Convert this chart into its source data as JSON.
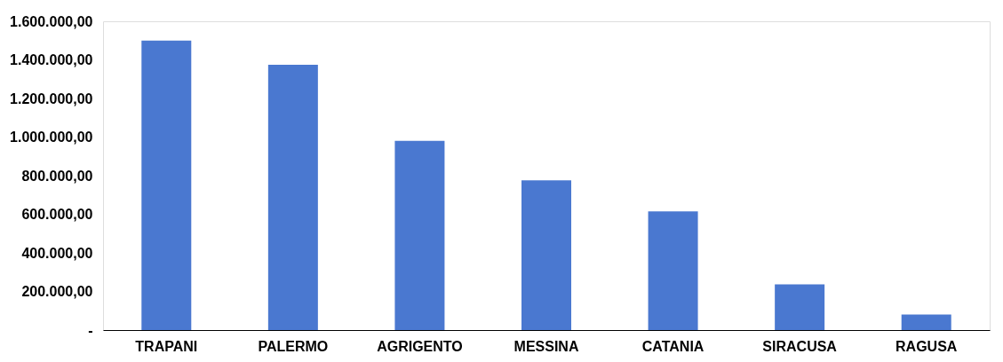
{
  "chart_data": {
    "type": "bar",
    "categories": [
      "TRAPANI",
      "PALERMO",
      "AGRIGENTO",
      "MESSINA",
      "CATANIA",
      "SIRACUSA",
      "RAGUSA"
    ],
    "values": [
      1500000,
      1375000,
      980000,
      776000,
      615000,
      237000,
      80000
    ],
    "color": "#4a78d0",
    "ylim": [
      0,
      1600000
    ],
    "yticks": [
      {
        "value": 0,
        "label": "-"
      },
      {
        "value": 200000,
        "label": "200.000,00"
      },
      {
        "value": 400000,
        "label": "400.000,00"
      },
      {
        "value": 600000,
        "label": "600.000,00"
      },
      {
        "value": 800000,
        "label": "800.000,00"
      },
      {
        "value": 1000000,
        "label": "1.000.000,00"
      },
      {
        "value": 1200000,
        "label": "1.200.000,00"
      },
      {
        "value": 1400000,
        "label": "1.400.000,00"
      },
      {
        "value": 1600000,
        "label": "1.600.000,00"
      }
    ],
    "grid": false
  }
}
